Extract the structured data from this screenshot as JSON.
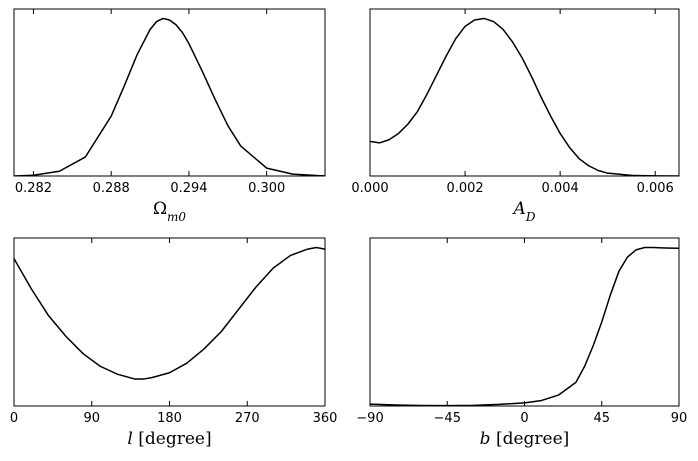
{
  "chart_data": [
    {
      "type": "line",
      "xlabel": "Ω_m0",
      "xlabel_parts": [
        {
          "text": "Ω",
          "style": "normal",
          "sub": false
        },
        {
          "text": "m0",
          "style": "italic",
          "sub": true
        }
      ],
      "xlim": [
        0.2805,
        0.3045
      ],
      "ylim": [
        0,
        1.06
      ],
      "xticks": [
        0.282,
        0.288,
        0.294,
        0.3
      ],
      "xtick_labels": [
        "0.282",
        "0.288",
        "0.294",
        "0.300"
      ],
      "yticks_visible": false,
      "grid": false,
      "series": [
        {
          "x": [
            0.2805,
            0.282,
            0.284,
            0.286,
            0.288,
            0.289,
            0.29,
            0.291,
            0.2915,
            0.292,
            0.2925,
            0.293,
            0.2935,
            0.294,
            0.295,
            0.296,
            0.297,
            0.298,
            0.3,
            0.302,
            0.304,
            0.3045
          ],
          "y": [
            0.0,
            0.005,
            0.03,
            0.12,
            0.38,
            0.57,
            0.77,
            0.93,
            0.98,
            1.0,
            0.99,
            0.96,
            0.91,
            0.84,
            0.67,
            0.49,
            0.32,
            0.19,
            0.05,
            0.012,
            0.002,
            0.001
          ]
        }
      ]
    },
    {
      "type": "line",
      "xlabel": "A_D",
      "xlabel_parts": [
        {
          "text": "A",
          "style": "italic",
          "sub": false
        },
        {
          "text": "D",
          "style": "italic",
          "sub": true
        }
      ],
      "xlim": [
        0.0,
        0.0065
      ],
      "ylim": [
        0,
        1.06
      ],
      "xticks": [
        0.0,
        0.002,
        0.004,
        0.006
      ],
      "xtick_labels": [
        "0.000",
        "0.002",
        "0.004",
        "0.006"
      ],
      "yticks_visible": false,
      "grid": false,
      "series": [
        {
          "x": [
            0.0,
            0.0002,
            0.0004,
            0.0006,
            0.0008,
            0.001,
            0.0012,
            0.0014,
            0.0016,
            0.0018,
            0.002,
            0.0022,
            0.0024,
            0.0026,
            0.0028,
            0.003,
            0.0032,
            0.0034,
            0.0036,
            0.0038,
            0.004,
            0.0042,
            0.0044,
            0.0046,
            0.0048,
            0.005,
            0.0055,
            0.006,
            0.0065
          ],
          "y": [
            0.22,
            0.21,
            0.23,
            0.27,
            0.33,
            0.41,
            0.52,
            0.64,
            0.76,
            0.87,
            0.95,
            0.99,
            1.0,
            0.98,
            0.93,
            0.85,
            0.75,
            0.63,
            0.5,
            0.38,
            0.27,
            0.18,
            0.11,
            0.065,
            0.035,
            0.018,
            0.004,
            0.001,
            0.0
          ]
        }
      ]
    },
    {
      "type": "line",
      "xlabel": "l [degree]",
      "xlabel_parts": [
        {
          "text": "l",
          "style": "italic",
          "sub": false
        },
        {
          "text": " [degree]",
          "style": "normal",
          "sub": false
        }
      ],
      "xlim": [
        0,
        360
      ],
      "ylim": [
        0,
        1.06
      ],
      "xticks": [
        0,
        90,
        180,
        270,
        360
      ],
      "xtick_labels": [
        "0",
        "90",
        "180",
        "270",
        "360"
      ],
      "yticks_visible": false,
      "grid": false,
      "series": [
        {
          "x": [
            0,
            20,
            40,
            60,
            80,
            100,
            120,
            140,
            150,
            160,
            180,
            200,
            220,
            240,
            260,
            280,
            300,
            320,
            340,
            350,
            360
          ],
          "y": [
            0.93,
            0.74,
            0.57,
            0.44,
            0.33,
            0.25,
            0.2,
            0.17,
            0.17,
            0.18,
            0.21,
            0.27,
            0.36,
            0.47,
            0.61,
            0.75,
            0.87,
            0.95,
            0.99,
            1.0,
            0.99
          ]
        }
      ]
    },
    {
      "type": "line",
      "xlabel": "b [degree]",
      "xlabel_parts": [
        {
          "text": "b",
          "style": "italic",
          "sub": false
        },
        {
          "text": " [degree]",
          "style": "normal",
          "sub": false
        }
      ],
      "xlim": [
        -90,
        90
      ],
      "ylim": [
        0,
        1.06
      ],
      "xticks": [
        -90,
        -45,
        0,
        45,
        90
      ],
      "xtick_labels": [
        "−90",
        "−45",
        "0",
        "45",
        "90"
      ],
      "yticks_visible": false,
      "grid": false,
      "series": [
        {
          "x": [
            -90,
            -75,
            -60,
            -45,
            -30,
            -15,
            0,
            10,
            20,
            30,
            35,
            40,
            45,
            50,
            55,
            60,
            65,
            70,
            75,
            80,
            85,
            90
          ],
          "y": [
            0.012,
            0.006,
            0.003,
            0.002,
            0.004,
            0.01,
            0.02,
            0.035,
            0.07,
            0.15,
            0.25,
            0.38,
            0.53,
            0.7,
            0.85,
            0.94,
            0.985,
            1.0,
            1.0,
            0.998,
            0.996,
            0.995
          ]
        }
      ]
    }
  ]
}
